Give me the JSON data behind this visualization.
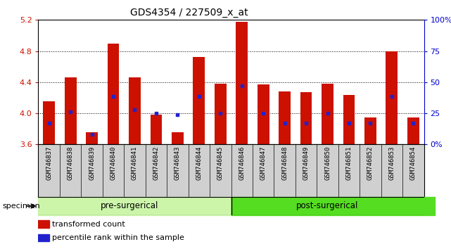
{
  "title": "GDS4354 / 227509_x_at",
  "samples": [
    "GSM746837",
    "GSM746838",
    "GSM746839",
    "GSM746840",
    "GSM746841",
    "GSM746842",
    "GSM746843",
    "GSM746844",
    "GSM746845",
    "GSM746846",
    "GSM746847",
    "GSM746848",
    "GSM746849",
    "GSM746850",
    "GSM746851",
    "GSM746852",
    "GSM746853",
    "GSM746854"
  ],
  "red_values": [
    4.15,
    4.46,
    3.76,
    4.9,
    4.46,
    3.98,
    3.76,
    4.72,
    4.38,
    5.18,
    4.37,
    4.28,
    4.27,
    4.38,
    4.24,
    3.95,
    4.8,
    3.95
  ],
  "blue_values": [
    3.87,
    4.02,
    3.73,
    4.22,
    4.05,
    4.0,
    3.98,
    4.22,
    4.0,
    4.35,
    4.0,
    3.87,
    3.87,
    4.0,
    3.87,
    3.87,
    4.22,
    3.87
  ],
  "pre_surgical_count": 9,
  "ylim": [
    3.6,
    5.2
  ],
  "yticks_left": [
    3.6,
    4.0,
    4.4,
    4.8,
    5.2
  ],
  "ytick_labels_left": [
    "3.6",
    "4.0",
    "4.4",
    "4.8",
    "5.2"
  ],
  "ytick_pcts": [
    0,
    25,
    50,
    75,
    100
  ],
  "ytick_labels_right": [
    "0%",
    "25",
    "50",
    "75",
    "100%"
  ],
  "bar_color": "#cc1100",
  "dot_color": "#2222cc",
  "bg_color": "#ffffff",
  "tick_area_color": "#d0d0d0",
  "pre_color": "#ccf5aa",
  "post_color": "#55dd22",
  "bar_width": 0.55,
  "left_tick_color": "#cc1100",
  "right_tick_color": "#0000cc",
  "legend_labels": [
    "transformed count",
    "percentile rank within the sample"
  ],
  "legend_colors": [
    "#cc1100",
    "#2222cc"
  ],
  "group_labels": [
    "pre-surgerical",
    "post-surgerical"
  ],
  "specimen_label": "specimen"
}
